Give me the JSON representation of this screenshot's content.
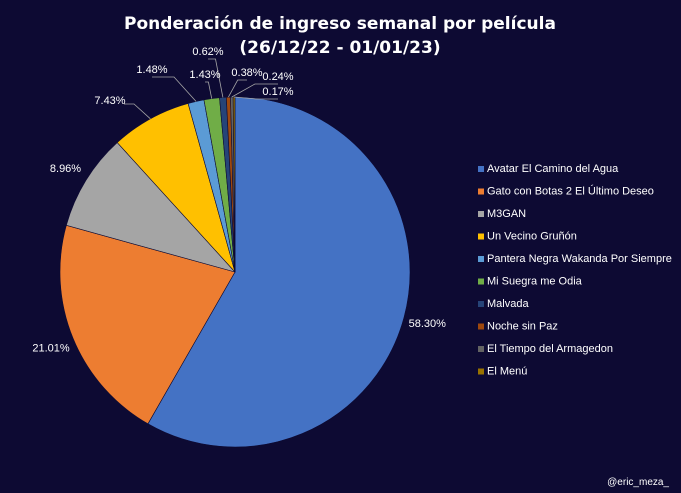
{
  "chart_data": {
    "type": "pie",
    "title_line1": "Ponderación de ingreso semanal por película",
    "title_line2": "(26/12/22 - 01/01/23)",
    "legend_position": "right",
    "slices": [
      {
        "name": "Avatar El Camino del Agua",
        "value": 58.3,
        "label": "58.30%",
        "color": "#4472c4"
      },
      {
        "name": "Gato con Botas 2 El Último Deseo",
        "value": 21.01,
        "label": "21.01%",
        "color": "#ed7d31"
      },
      {
        "name": "M3GAN",
        "value": 8.96,
        "label": "8.96%",
        "color": "#a5a5a5"
      },
      {
        "name": "Un Vecino Gruñón",
        "value": 7.43,
        "label": "7.43%",
        "color": "#ffc000"
      },
      {
        "name": "Pantera Negra Wakanda Por Siempre",
        "value": 1.48,
        "label": "1.48%",
        "color": "#5b9bd5"
      },
      {
        "name": "Mi Suegra me Odia",
        "value": 1.43,
        "label": "1.43%",
        "color": "#70ad47"
      },
      {
        "name": "Malvada",
        "value": 0.62,
        "label": "0.62%",
        "color": "#264478"
      },
      {
        "name": "Noche sin Paz",
        "value": 0.38,
        "label": "0.38%",
        "color": "#9e480e"
      },
      {
        "name": "El Tiempo del Armagedon",
        "value": 0.24,
        "label": "0.24%",
        "color": "#636363"
      },
      {
        "name": "El Menú",
        "value": 0.17,
        "label": "0.17%",
        "color": "#997300"
      }
    ]
  },
  "watermark": "@eric_meza_"
}
